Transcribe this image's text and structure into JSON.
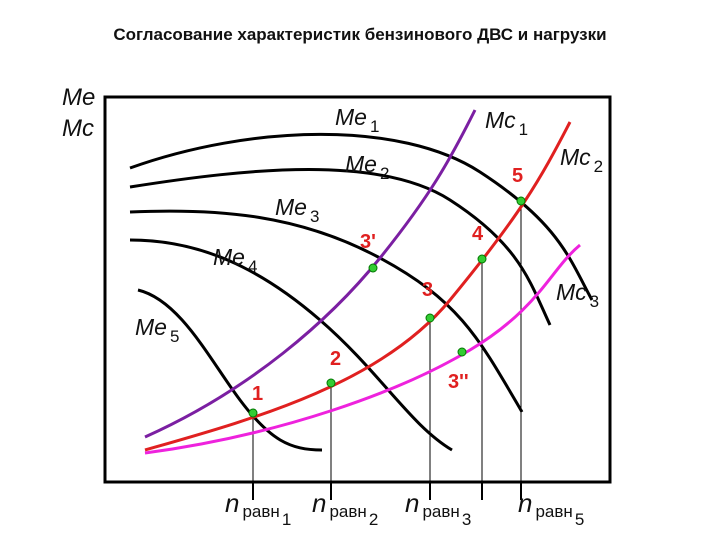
{
  "title": "Согласование характеристик бензинового ДВС и нагрузки",
  "axis_label": {
    "line1": "Me",
    "line2": "Mc"
  },
  "curves": [
    {
      "name": "Me",
      "index": "1"
    },
    {
      "name": "Me",
      "index": "2"
    },
    {
      "name": "Me",
      "index": "3"
    },
    {
      "name": "Me",
      "index": "4"
    },
    {
      "name": "Me",
      "index": "5"
    },
    {
      "name": "Mc",
      "index": "1"
    },
    {
      "name": "Mc",
      "index": "2"
    },
    {
      "name": "Mc",
      "index": "3"
    }
  ],
  "points": [
    {
      "label": "1"
    },
    {
      "label": "2"
    },
    {
      "label": "3'"
    },
    {
      "label": "3"
    },
    {
      "label": "3''"
    },
    {
      "label": "4"
    },
    {
      "label": "5"
    }
  ],
  "speeds": [
    {
      "symbol": "n",
      "text": "равн",
      "index": "1"
    },
    {
      "symbol": "n",
      "text": "равн",
      "index": "2"
    },
    {
      "symbol": "n",
      "text": "равн",
      "index": "3"
    },
    {
      "symbol": "n",
      "text": "равн",
      "index": "5"
    }
  ]
}
